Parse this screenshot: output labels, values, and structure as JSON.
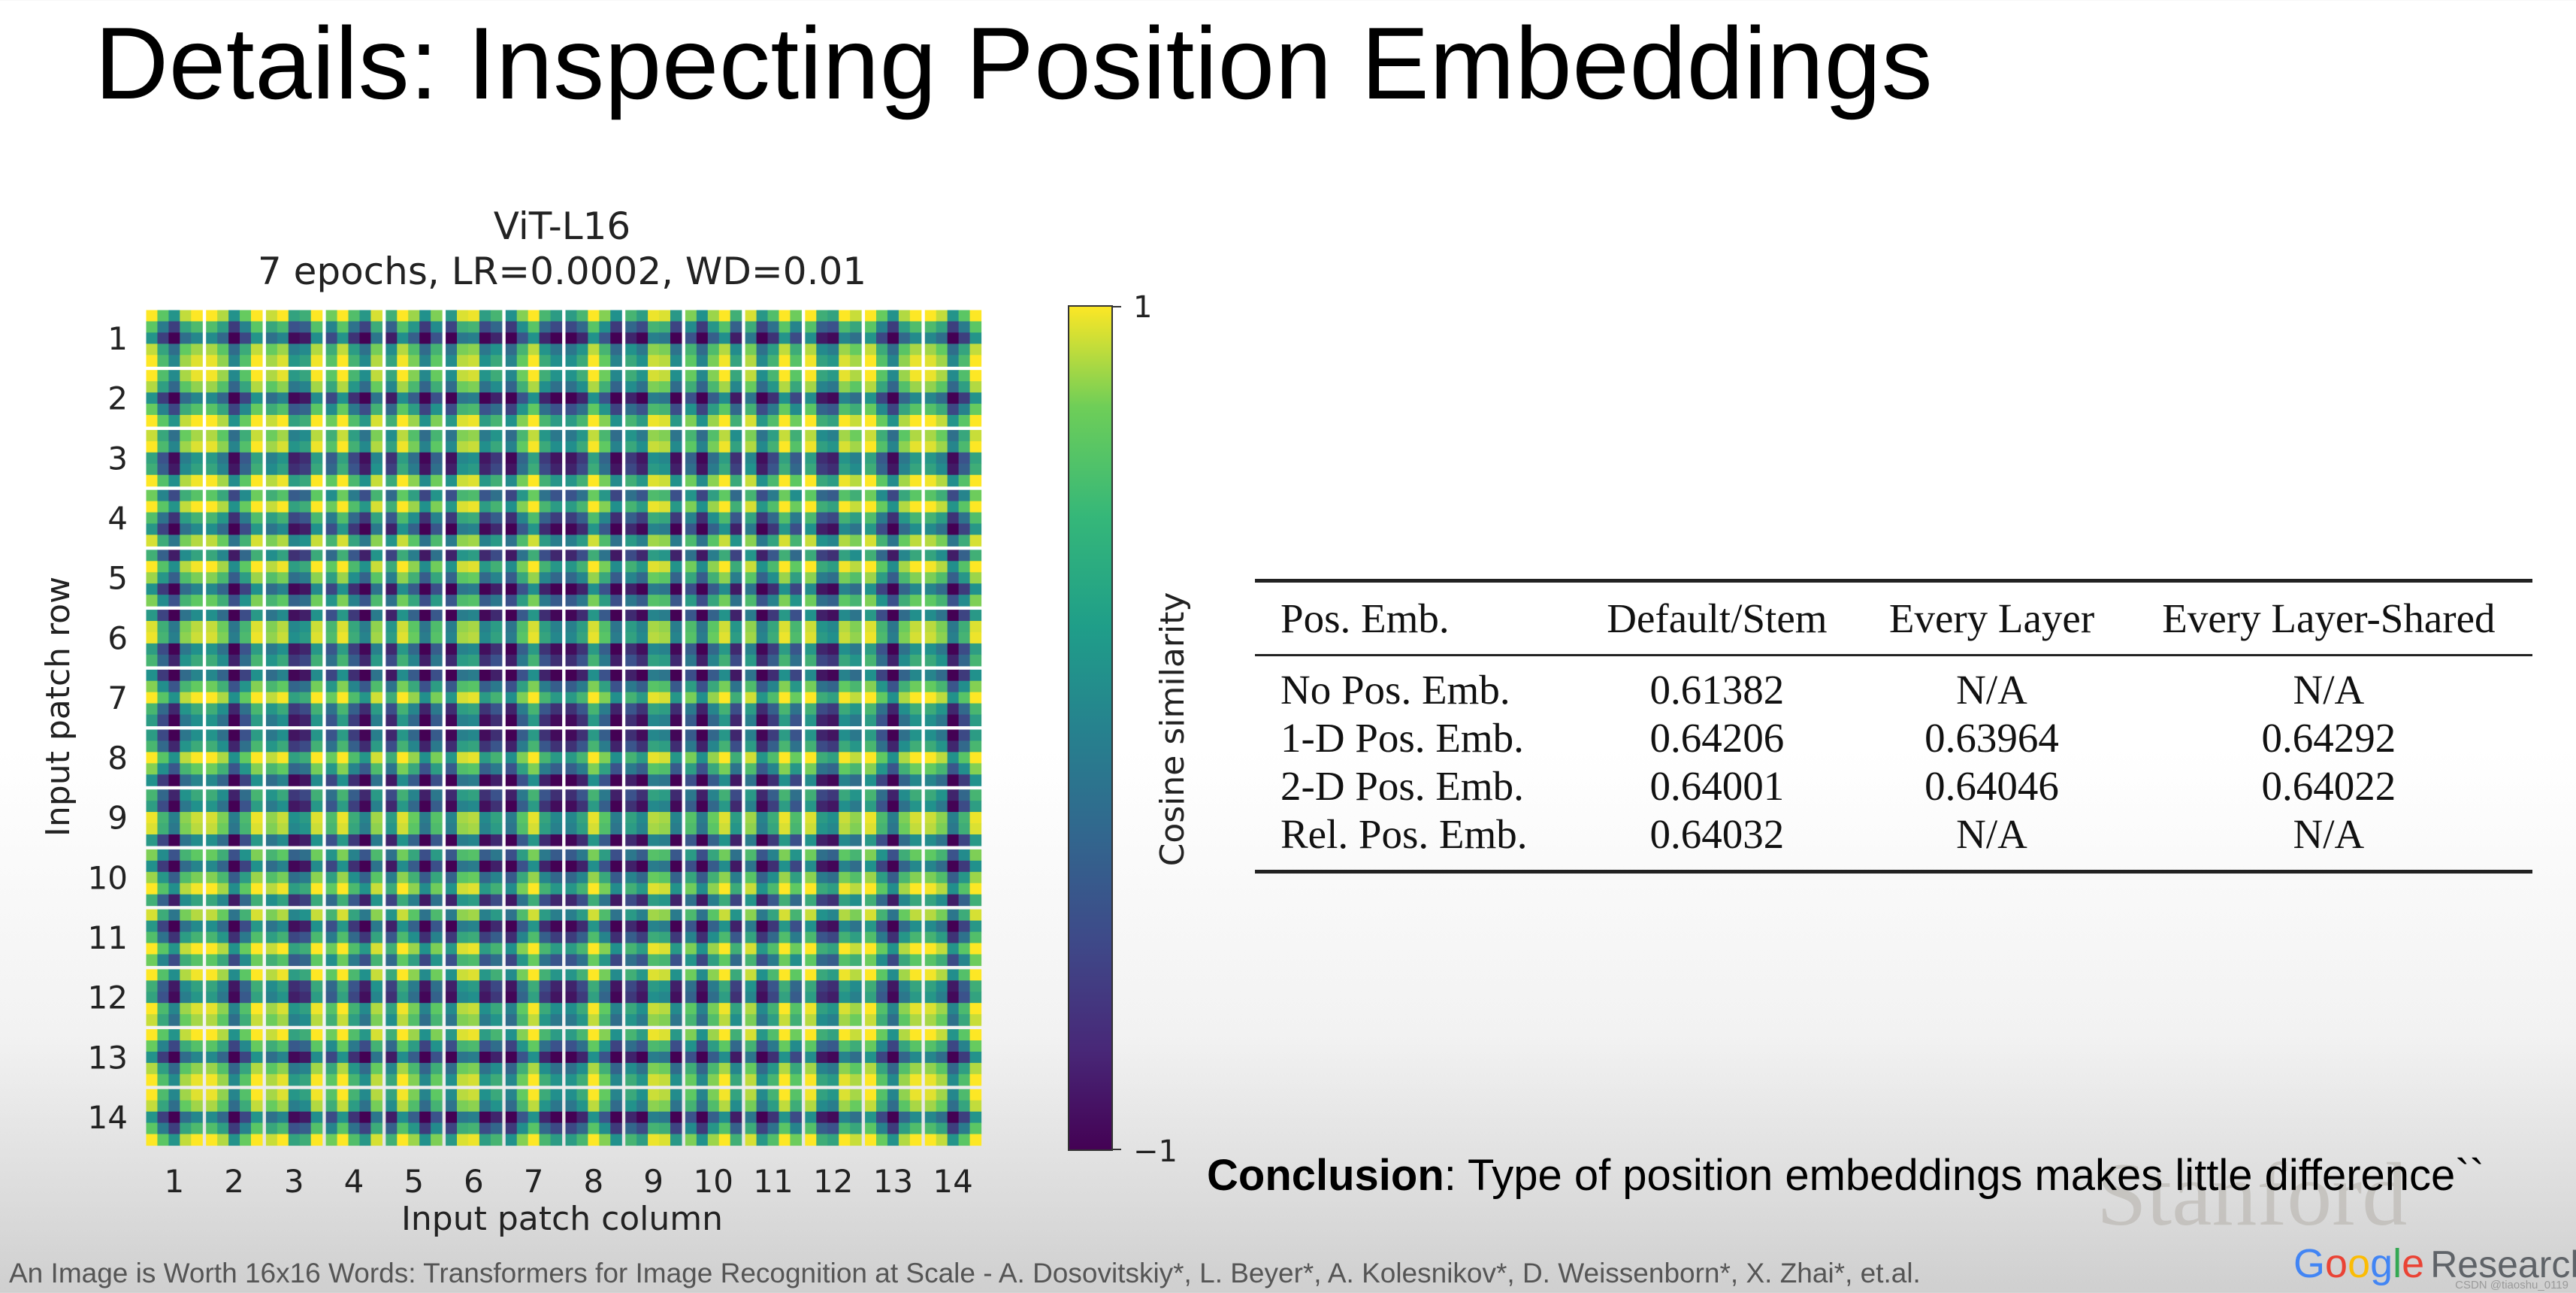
{
  "slide": {
    "title": "Details: Inspecting Position Embeddings"
  },
  "chart_data": {
    "type": "heatmap",
    "title": "ViT-L16",
    "subtitle": "7 epochs, LR=0.0002, WD=0.01",
    "rows": 14,
    "cols": 14,
    "row_labels": [
      "1",
      "2",
      "3",
      "4",
      "5",
      "6",
      "7",
      "8",
      "9",
      "10",
      "11",
      "12",
      "13",
      "14"
    ],
    "col_labels": [
      "1",
      "2",
      "3",
      "4",
      "5",
      "6",
      "7",
      "8",
      "9",
      "10",
      "11",
      "12",
      "13",
      "14"
    ],
    "xlabel": "Input patch column",
    "ylabel": "Input patch row",
    "colorbar": {
      "label": "Cosine similarity",
      "min": -1,
      "max": 1,
      "tick_labels": [
        "1",
        "−1"
      ],
      "colormap": "viridis"
    }
  },
  "table": {
    "headers": [
      "Pos. Emb.",
      "Default/Stem",
      "Every Layer",
      "Every Layer-Shared"
    ],
    "rows": [
      [
        "No Pos. Emb.",
        "0.61382",
        "N/A",
        "N/A"
      ],
      [
        "1-D Pos. Emb.",
        "0.64206",
        "0.63964",
        "0.64292"
      ],
      [
        "2-D Pos. Emb.",
        "0.64001",
        "0.64046",
        "0.64022"
      ],
      [
        "Rel. Pos. Emb.",
        "0.64032",
        "N/A",
        "N/A"
      ]
    ]
  },
  "conclusion": {
    "label": "Conclusion",
    "text": ": Type of position embeddings makes little difference``"
  },
  "watermark": "Stanford",
  "citation": "An Image is Worth 16x16 Words: Transformers for Image Recognition at Scale - A. Dosovitskiy*, L. Beyer*, A. Kolesnikov*, D. Weissenborn*, X. Zhai*, et.al.",
  "brand": {
    "letters": [
      "G",
      "o",
      "o",
      "g",
      "l",
      "e"
    ],
    "research": "Research"
  },
  "corner_mark": "CSDN @tiaoshu_0119"
}
